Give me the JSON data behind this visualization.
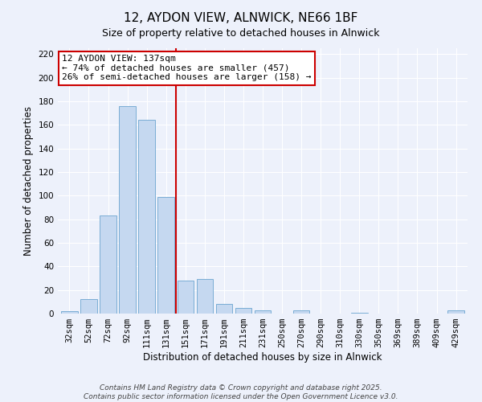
{
  "title": "12, AYDON VIEW, ALNWICK, NE66 1BF",
  "subtitle": "Size of property relative to detached houses in Alnwick",
  "xlabel": "Distribution of detached houses by size in Alnwick",
  "ylabel": "Number of detached properties",
  "bar_labels": [
    "32sqm",
    "52sqm",
    "72sqm",
    "92sqm",
    "111sqm",
    "131sqm",
    "151sqm",
    "171sqm",
    "191sqm",
    "211sqm",
    "231sqm",
    "250sqm",
    "270sqm",
    "290sqm",
    "310sqm",
    "330sqm",
    "350sqm",
    "369sqm",
    "389sqm",
    "409sqm",
    "429sqm"
  ],
  "bar_values": [
    2,
    12,
    83,
    176,
    164,
    99,
    28,
    29,
    8,
    5,
    3,
    0,
    3,
    0,
    0,
    1,
    0,
    0,
    0,
    0,
    3
  ],
  "bar_color": "#c5d8f0",
  "bar_edge_color": "#7aadd4",
  "vline_x": 5.5,
  "vline_color": "#cc0000",
  "annotation_title": "12 AYDON VIEW: 137sqm",
  "annotation_line1": "← 74% of detached houses are smaller (457)",
  "annotation_line2": "26% of semi-detached houses are larger (158) →",
  "annotation_box_color": "#ffffff",
  "annotation_box_edge": "#cc0000",
  "ylim": [
    0,
    225
  ],
  "yticks": [
    0,
    20,
    40,
    60,
    80,
    100,
    120,
    140,
    160,
    180,
    200,
    220
  ],
  "footer1": "Contains HM Land Registry data © Crown copyright and database right 2025.",
  "footer2": "Contains public sector information licensed under the Open Government Licence v3.0.",
  "bg_color": "#edf1fb",
  "title_fontsize": 11,
  "subtitle_fontsize": 9,
  "axis_label_fontsize": 8.5,
  "tick_fontsize": 7.5,
  "annotation_fontsize": 8,
  "footer_fontsize": 6.5
}
